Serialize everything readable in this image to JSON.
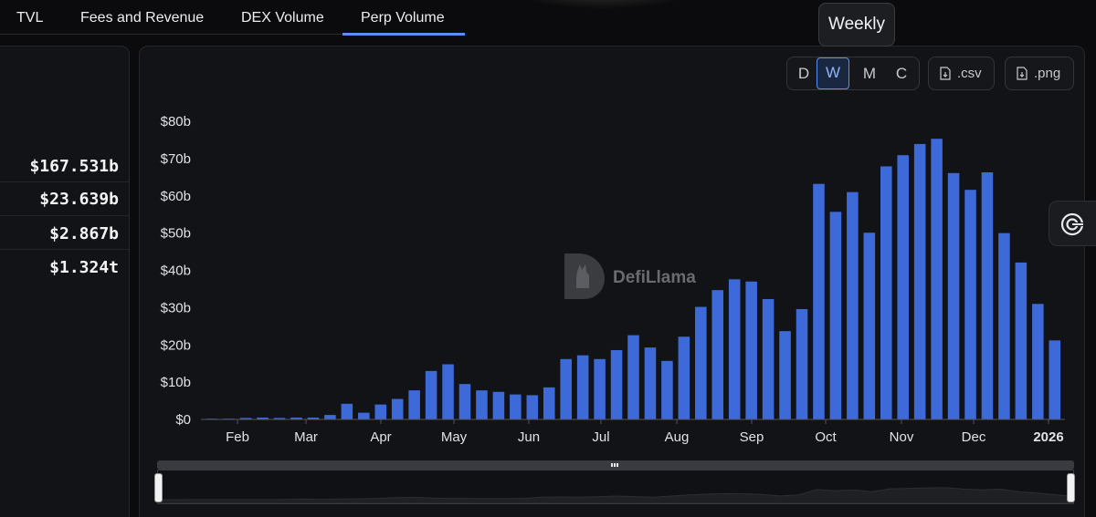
{
  "tabs": [
    {
      "label": "TVL"
    },
    {
      "label": "Fees and Revenue"
    },
    {
      "label": "DEX Volume"
    },
    {
      "label": "Perp Volume"
    }
  ],
  "active_tab": "Perp Volume",
  "tooltip": "Weekly",
  "stats": [
    "$167.531b",
    "$23.639b",
    "$2.867b",
    "$1.324t"
  ],
  "granularity": {
    "options": [
      "D",
      "W",
      "M",
      "C"
    ],
    "selected": "W"
  },
  "downloads": {
    "csv_label": ".csv",
    "png_label": ".png"
  },
  "watermark": "DefiLlama",
  "icons": {
    "download": "file-download-icon",
    "side": "target-icon",
    "watermark_logo": "llama-logo"
  },
  "colors": {
    "bar": "#3d6ad8",
    "accent": "#5b8ef5",
    "background": "#0b0b0d",
    "panel": "#121316"
  },
  "chart_data": {
    "type": "bar",
    "title": "",
    "xlabel": "",
    "ylabel": "",
    "ylim": [
      0,
      80
    ],
    "y_unit": "b",
    "yticks": [
      {
        "value": 0,
        "label": "$0"
      },
      {
        "value": 10,
        "label": "$10b"
      },
      {
        "value": 20,
        "label": "$20b"
      },
      {
        "value": 30,
        "label": "$30b"
      },
      {
        "value": 40,
        "label": "$40b"
      },
      {
        "value": 50,
        "label": "$50b"
      },
      {
        "value": 60,
        "label": "$60b"
      },
      {
        "value": 70,
        "label": "$70b"
      },
      {
        "value": 80,
        "label": "$80b"
      }
    ],
    "xticks": [
      {
        "label": "Feb",
        "bold": false
      },
      {
        "label": "Mar",
        "bold": false
      },
      {
        "label": "Apr",
        "bold": false
      },
      {
        "label": "May",
        "bold": false
      },
      {
        "label": "Jun",
        "bold": false
      },
      {
        "label": "Jul",
        "bold": false
      },
      {
        "label": "Aug",
        "bold": false
      },
      {
        "label": "Sep",
        "bold": false
      },
      {
        "label": "Oct",
        "bold": false
      },
      {
        "label": "Nov",
        "bold": false
      },
      {
        "label": "Dec",
        "bold": false
      },
      {
        "label": "2026",
        "bold": true
      }
    ],
    "series": [
      {
        "values": [
          0.2,
          0.2,
          0.4,
          0.5,
          0.4,
          0.5,
          0.5,
          1.2,
          4.2,
          1.8,
          4.0,
          5.5,
          7.8,
          13.0,
          14.8,
          9.5,
          7.8,
          7.4,
          6.7,
          6.5,
          8.6,
          16.2,
          17.2,
          16.2,
          18.6,
          22.6,
          19.3,
          15.7,
          22.2,
          30.2,
          34.7,
          37.6,
          37.0,
          32.3,
          23.7,
          29.6,
          63.2,
          55.7,
          61.0,
          50.1,
          67.9,
          70.9,
          73.9,
          75.3,
          66.1,
          61.6,
          66.3,
          50.0,
          42.1,
          31.0,
          21.2
        ]
      }
    ],
    "grid": false,
    "legend": "none"
  }
}
